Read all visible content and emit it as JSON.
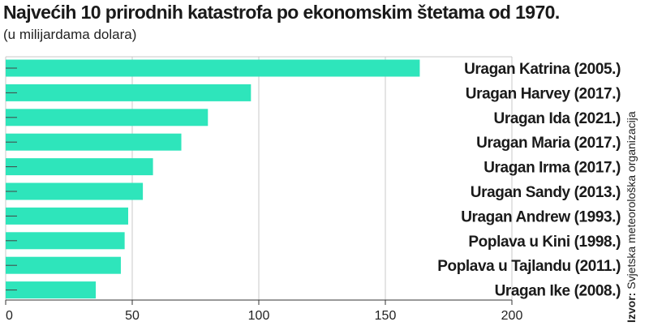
{
  "chart_data": {
    "type": "bar",
    "orientation": "horizontal",
    "title": "Najvećih 10 prirodnih katastrofa po ekonomskim štetama od 1970.",
    "subtitle": "(u milijardama dolara)",
    "categories": [
      "Uragan Katrina (2005.)",
      "Uragan Harvey (2017.)",
      "Uragan Ida (2021.)",
      "Uragan Maria (2017.)",
      "Uragan Irma (2017.)",
      "Uragan Sandy (2013.)",
      "Uragan Andrew (1993.)",
      "Poplava u Kini (1998.)",
      "Poplava u Tajlandu (2011.)",
      "Uragan Ike (2008.)"
    ],
    "values": [
      163.6,
      96.9,
      79.9,
      69.4,
      58.2,
      54.2,
      48.4,
      47.0,
      45.5,
      35.6
    ],
    "xlim": [
      0,
      200
    ],
    "xticks": [
      0,
      50,
      100,
      150,
      200
    ],
    "grid": true,
    "bar_color": "#2ee5bb",
    "source_label": "Izvor:",
    "source_text": "Svjetska meteorološka organizacija"
  }
}
